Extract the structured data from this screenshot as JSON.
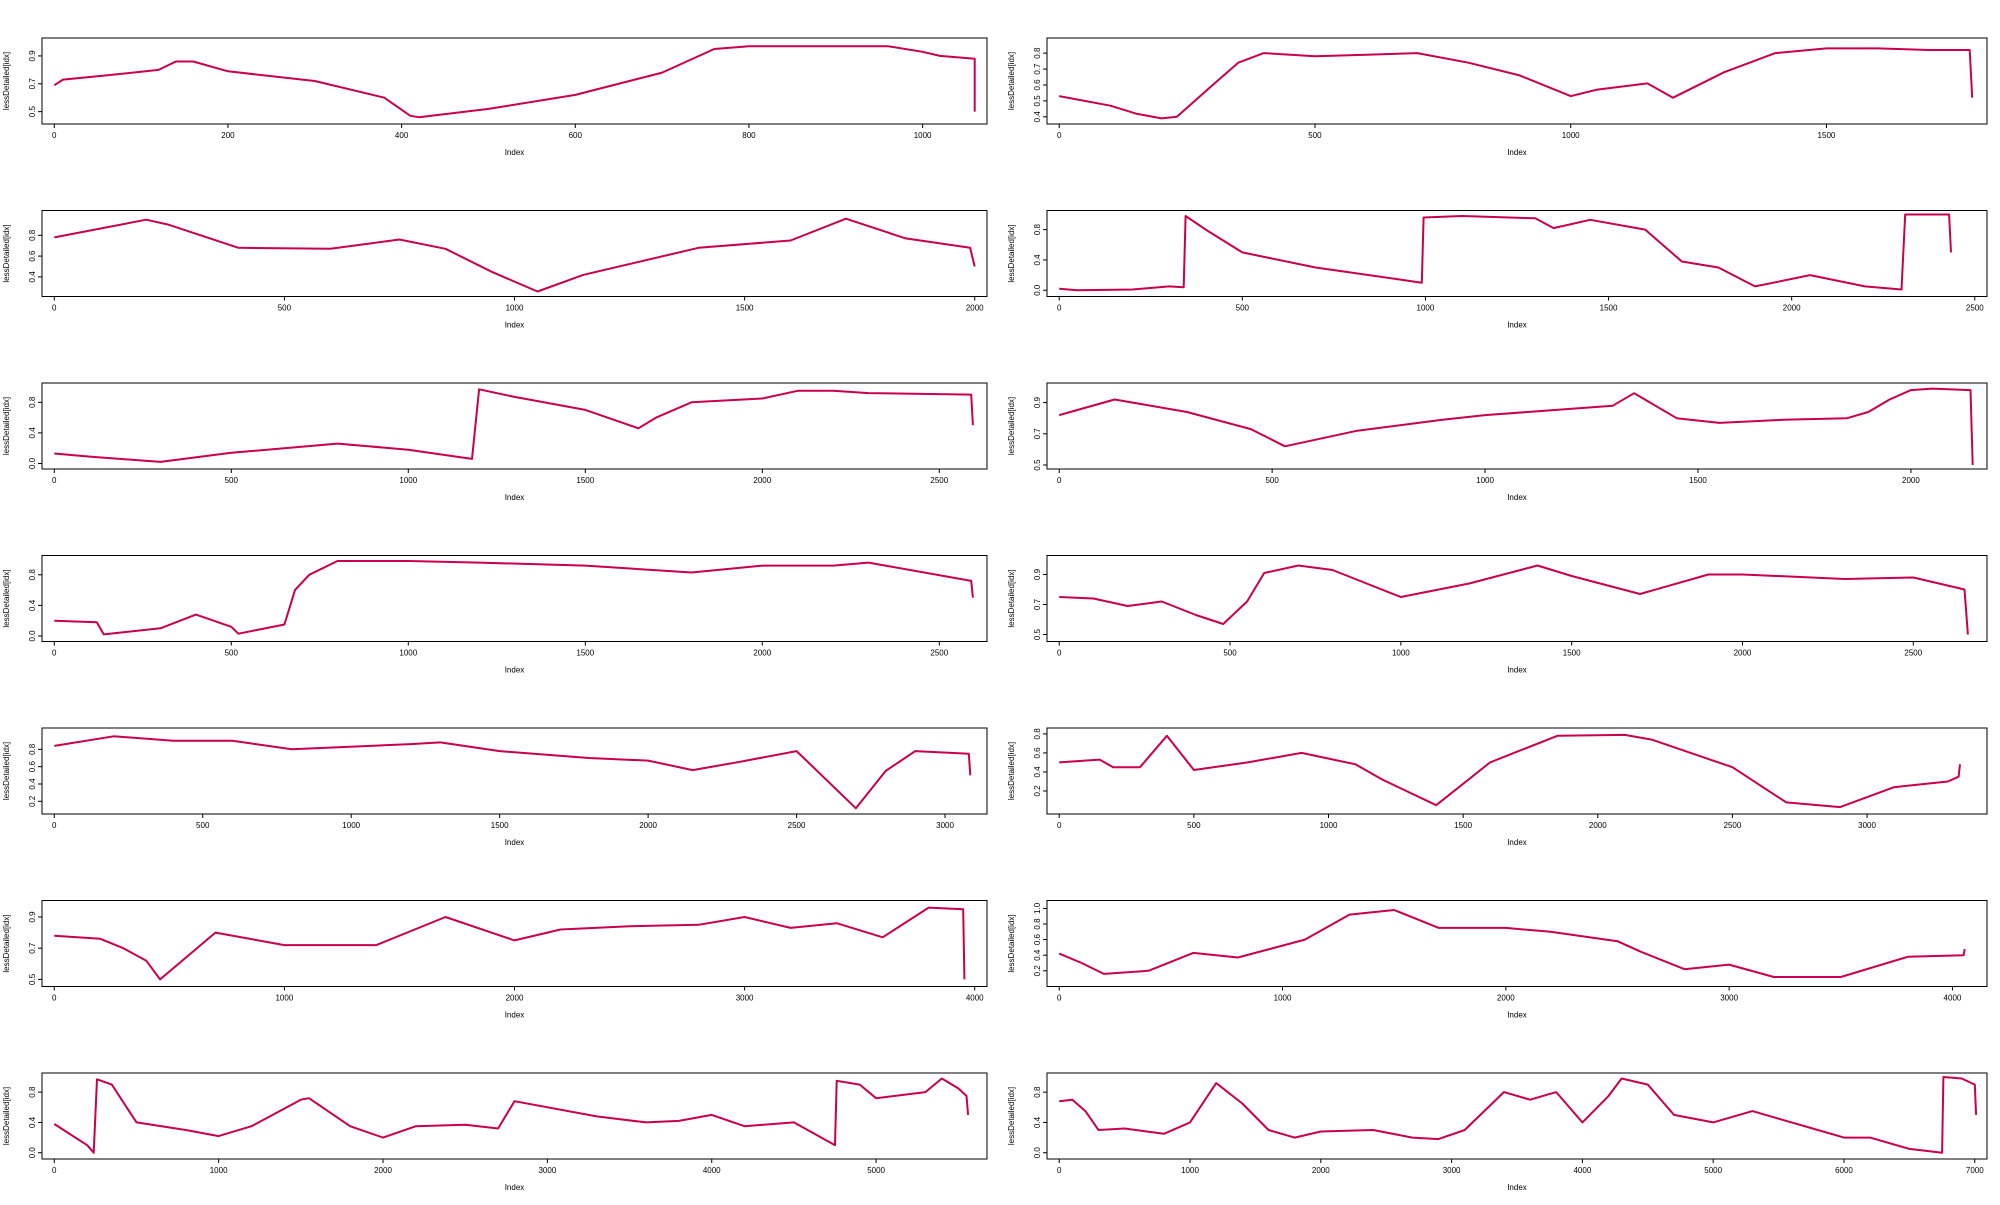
{
  "chart_data": [
    {
      "type": "line",
      "xlabel": "Index",
      "ylabel": "lessDetailed[idx]",
      "xlim": [
        0,
        1060
      ],
      "ylim": [
        0.44,
        1.0
      ],
      "xticks": [
        0,
        200,
        400,
        600,
        800,
        1000
      ],
      "yticks": [
        0.5,
        0.7,
        0.9
      ],
      "series": [
        {
          "x": [
            0,
            10,
            60,
            120,
            140,
            160,
            200,
            300,
            380,
            410,
            420,
            500,
            600,
            700,
            760,
            800,
            900,
            960,
            1000,
            1020,
            1060,
            1060
          ],
          "y": [
            0.69,
            0.73,
            0.76,
            0.8,
            0.86,
            0.86,
            0.79,
            0.72,
            0.6,
            0.47,
            0.46,
            0.52,
            0.62,
            0.78,
            0.95,
            0.97,
            0.97,
            0.97,
            0.93,
            0.9,
            0.88,
            0.5
          ]
        }
      ]
    },
    {
      "type": "line",
      "xlabel": "Index",
      "ylabel": "lessDetailed[idx]",
      "xlim": [
        0,
        1790
      ],
      "ylim": [
        0.38,
        0.87
      ],
      "xticks": [
        0,
        500,
        1000,
        1500
      ],
      "yticks": [
        0.4,
        0.5,
        0.6,
        0.7,
        0.8
      ],
      "series": [
        {
          "x": [
            0,
            100,
            150,
            200,
            230,
            300,
            350,
            400,
            500,
            600,
            700,
            800,
            900,
            1000,
            1050,
            1150,
            1200,
            1300,
            1400,
            1500,
            1600,
            1700,
            1780,
            1785
          ],
          "y": [
            0.53,
            0.47,
            0.42,
            0.39,
            0.4,
            0.6,
            0.74,
            0.8,
            0.78,
            0.79,
            0.8,
            0.74,
            0.66,
            0.53,
            0.57,
            0.61,
            0.52,
            0.68,
            0.8,
            0.83,
            0.83,
            0.82,
            0.82,
            0.52
          ]
        }
      ]
    },
    {
      "type": "line",
      "xlabel": "Index",
      "ylabel": "lessDetailed[idx]",
      "xlim": [
        0,
        2000
      ],
      "ylim": [
        0.25,
        1.0
      ],
      "xticks": [
        0,
        500,
        1000,
        1500,
        2000
      ],
      "yticks": [
        0.4,
        0.6,
        0.8
      ],
      "series": [
        {
          "x": [
            0,
            200,
            250,
            400,
            600,
            750,
            850,
            950,
            1050,
            1150,
            1400,
            1600,
            1720,
            1850,
            1990,
            2000
          ],
          "y": [
            0.78,
            0.95,
            0.9,
            0.68,
            0.67,
            0.76,
            0.67,
            0.45,
            0.26,
            0.42,
            0.68,
            0.75,
            0.96,
            0.77,
            0.68,
            0.5
          ]
        }
      ]
    },
    {
      "type": "line",
      "xlabel": "Index",
      "ylabel": "lessDetailed[idx]",
      "xlim": [
        0,
        2500
      ],
      "ylim": [
        -0.03,
        1.0
      ],
      "xticks": [
        0,
        500,
        1000,
        1500,
        2000,
        2500
      ],
      "yticks": [
        0.0,
        0.4,
        0.8
      ],
      "series": [
        {
          "x": [
            0,
            50,
            200,
            300,
            340,
            345,
            400,
            500,
            700,
            990,
            995,
            1100,
            1300,
            1350,
            1450,
            1600,
            1700,
            1800,
            1900,
            1950,
            2050,
            2200,
            2300,
            2310,
            2430,
            2435
          ],
          "y": [
            0.02,
            0.0,
            0.01,
            0.05,
            0.04,
            0.98,
            0.8,
            0.5,
            0.3,
            0.1,
            0.96,
            0.98,
            0.95,
            0.82,
            0.93,
            0.8,
            0.38,
            0.3,
            0.05,
            0.1,
            0.2,
            0.05,
            0.01,
            1.0,
            1.0,
            0.5
          ]
        }
      ]
    },
    {
      "type": "line",
      "xlabel": "Index",
      "ylabel": "lessDetailed[idx]",
      "xlim": [
        0,
        2600
      ],
      "ylim": [
        -0.02,
        1.0
      ],
      "xticks": [
        0,
        500,
        1000,
        1500,
        2000,
        2500
      ],
      "yticks": [
        0.0,
        0.4,
        0.8
      ],
      "series": [
        {
          "x": [
            0,
            100,
            300,
            500,
            800,
            1000,
            1150,
            1180,
            1200,
            1300,
            1500,
            1650,
            1700,
            1800,
            2000,
            2100,
            2200,
            2300,
            2590,
            2595
          ],
          "y": [
            0.13,
            0.09,
            0.02,
            0.14,
            0.26,
            0.18,
            0.08,
            0.06,
            0.97,
            0.87,
            0.7,
            0.46,
            0.6,
            0.8,
            0.85,
            0.95,
            0.95,
            0.92,
            0.9,
            0.5
          ]
        }
      ]
    },
    {
      "type": "line",
      "xlabel": "Index",
      "ylabel": "lessDetailed[idx]",
      "xlim": [
        0,
        2150
      ],
      "ylim": [
        0.5,
        1.0
      ],
      "xticks": [
        0,
        500,
        1000,
        1500,
        2000
      ],
      "yticks": [
        0.5,
        0.7,
        0.9
      ],
      "series": [
        {
          "x": [
            0,
            130,
            300,
            450,
            530,
            700,
            900,
            1000,
            1100,
            1300,
            1350,
            1450,
            1550,
            1700,
            1850,
            1900,
            1950,
            2000,
            2050,
            2140,
            2145
          ],
          "y": [
            0.82,
            0.92,
            0.84,
            0.73,
            0.62,
            0.72,
            0.79,
            0.82,
            0.84,
            0.88,
            0.96,
            0.8,
            0.77,
            0.79,
            0.8,
            0.84,
            0.92,
            0.98,
            0.99,
            0.98,
            0.5
          ]
        }
      ]
    },
    {
      "type": "line",
      "xlabel": "Index",
      "ylabel": "lessDetailed[idx]",
      "xlim": [
        0,
        2600
      ],
      "ylim": [
        -0.02,
        1.0
      ],
      "xticks": [
        0,
        500,
        1000,
        1500,
        2000,
        2500
      ],
      "yticks": [
        0.0,
        0.4,
        0.8
      ],
      "series": [
        {
          "x": [
            0,
            120,
            140,
            300,
            400,
            500,
            520,
            650,
            680,
            720,
            800,
            1000,
            1200,
            1500,
            1800,
            2000,
            2200,
            2300,
            2590,
            2595
          ],
          "y": [
            0.2,
            0.18,
            0.02,
            0.1,
            0.28,
            0.12,
            0.03,
            0.15,
            0.6,
            0.8,
            0.98,
            0.98,
            0.96,
            0.92,
            0.83,
            0.92,
            0.92,
            0.96,
            0.72,
            0.5
          ]
        }
      ]
    },
    {
      "type": "line",
      "xlabel": "Index",
      "ylabel": "lessDetailed[idx]",
      "xlim": [
        0,
        2680
      ],
      "ylim": [
        0.48,
        1.0
      ],
      "xticks": [
        0,
        500,
        1000,
        1500,
        2000,
        2500
      ],
      "yticks": [
        0.5,
        0.7,
        0.9
      ],
      "series": [
        {
          "x": [
            0,
            100,
            200,
            300,
            400,
            480,
            550,
            600,
            700,
            800,
            1000,
            1200,
            1400,
            1500,
            1700,
            1900,
            2000,
            2300,
            2500,
            2650,
            2660
          ],
          "y": [
            0.75,
            0.74,
            0.69,
            0.72,
            0.63,
            0.57,
            0.72,
            0.91,
            0.96,
            0.93,
            0.75,
            0.84,
            0.96,
            0.89,
            0.77,
            0.9,
            0.9,
            0.87,
            0.88,
            0.8,
            0.5
          ]
        }
      ]
    },
    {
      "type": "line",
      "xlabel": "Index",
      "ylabel": "lessDetailed[idx]",
      "xlim": [
        0,
        3100
      ],
      "ylim": [
        0.1,
        1.0
      ],
      "xticks": [
        0,
        500,
        1000,
        1500,
        2000,
        2500,
        3000
      ],
      "yticks": [
        0.2,
        0.4,
        0.6,
        0.8
      ],
      "series": [
        {
          "x": [
            0,
            200,
            400,
            600,
            800,
            1200,
            1300,
            1500,
            1800,
            2000,
            2150,
            2300,
            2500,
            2700,
            2800,
            2900,
            3080,
            3085
          ],
          "y": [
            0.84,
            0.95,
            0.9,
            0.9,
            0.8,
            0.86,
            0.88,
            0.78,
            0.7,
            0.67,
            0.56,
            0.65,
            0.78,
            0.12,
            0.55,
            0.78,
            0.75,
            0.5
          ]
        }
      ]
    },
    {
      "type": "line",
      "xlabel": "Index",
      "ylabel": "lessDetailed[idx]",
      "xlim": [
        0,
        3400
      ],
      "ylim": [
        0.0,
        0.82
      ],
      "xticks": [
        0,
        500,
        1000,
        1500,
        2000,
        2500,
        3000
      ],
      "yticks": [
        0.2,
        0.4,
        0.6,
        0.8
      ],
      "series": [
        {
          "x": [
            0,
            150,
            200,
            300,
            400,
            500,
            700,
            900,
            1100,
            1200,
            1400,
            1600,
            1850,
            2100,
            2200,
            2500,
            2700,
            2900,
            3100,
            3300,
            3340,
            3345
          ],
          "y": [
            0.5,
            0.53,
            0.45,
            0.45,
            0.78,
            0.42,
            0.5,
            0.6,
            0.48,
            0.32,
            0.05,
            0.5,
            0.78,
            0.79,
            0.74,
            0.45,
            0.08,
            0.03,
            0.24,
            0.3,
            0.35,
            0.48
          ]
        }
      ]
    },
    {
      "type": "line",
      "xlabel": "Index",
      "ylabel": "lessDetailed[idx]",
      "xlim": [
        0,
        4000
      ],
      "ylim": [
        0.48,
        0.98
      ],
      "xticks": [
        0,
        1000,
        2000,
        3000,
        4000
      ],
      "yticks": [
        0.5,
        0.7,
        0.9
      ],
      "series": [
        {
          "x": [
            0,
            200,
            300,
            400,
            460,
            700,
            1000,
            1200,
            1400,
            1700,
            2000,
            2200,
            2500,
            2800,
            3000,
            3200,
            3400,
            3600,
            3800,
            3950,
            3955
          ],
          "y": [
            0.78,
            0.76,
            0.7,
            0.62,
            0.5,
            0.8,
            0.72,
            0.72,
            0.72,
            0.9,
            0.75,
            0.82,
            0.84,
            0.85,
            0.9,
            0.83,
            0.86,
            0.77,
            0.96,
            0.95,
            0.5
          ]
        }
      ]
    },
    {
      "type": "line",
      "xlabel": "Index",
      "ylabel": "lessDetailed[idx]",
      "xlim": [
        0,
        4100
      ],
      "ylim": [
        0.05,
        1.05
      ],
      "xticks": [
        0,
        1000,
        2000,
        3000,
        4000
      ],
      "yticks": [
        0.2,
        0.4,
        0.6,
        0.8,
        1.0
      ],
      "series": [
        {
          "x": [
            0,
            100,
            200,
            400,
            600,
            800,
            1100,
            1300,
            1500,
            1700,
            2000,
            2200,
            2500,
            2600,
            2800,
            3000,
            3200,
            3500,
            3800,
            4050,
            4055
          ],
          "y": [
            0.42,
            0.3,
            0.16,
            0.2,
            0.43,
            0.37,
            0.6,
            0.92,
            0.98,
            0.75,
            0.75,
            0.7,
            0.58,
            0.45,
            0.22,
            0.28,
            0.12,
            0.12,
            0.38,
            0.4,
            0.48
          ]
        }
      ]
    },
    {
      "type": "line",
      "xlabel": "Index",
      "ylabel": "lessDetailed[idx]",
      "xlim": [
        0,
        5600
      ],
      "ylim": [
        -0.03,
        1.0
      ],
      "xticks": [
        0,
        1000,
        2000,
        3000,
        4000,
        5000
      ],
      "yticks": [
        0.0,
        0.4,
        0.8
      ],
      "series": [
        {
          "x": [
            0,
            200,
            240,
            260,
            350,
            500,
            800,
            1000,
            1200,
            1500,
            1550,
            1800,
            2000,
            2200,
            2500,
            2700,
            2800,
            3300,
            3600,
            3800,
            4000,
            4200,
            4500,
            4750,
            4760,
            4900,
            5000,
            5300,
            5400,
            5500,
            5550,
            5560
          ],
          "y": [
            0.38,
            0.1,
            0.0,
            0.97,
            0.9,
            0.4,
            0.3,
            0.22,
            0.35,
            0.7,
            0.72,
            0.35,
            0.2,
            0.35,
            0.37,
            0.32,
            0.68,
            0.48,
            0.4,
            0.42,
            0.5,
            0.35,
            0.4,
            0.1,
            0.95,
            0.9,
            0.72,
            0.8,
            0.98,
            0.85,
            0.75,
            0.5
          ]
        }
      ]
    },
    {
      "type": "line",
      "xlabel": "Index",
      "ylabel": "lessDetailed[idx]",
      "xlim": [
        0,
        7000
      ],
      "ylim": [
        -0.03,
        1.0
      ],
      "xticks": [
        0,
        1000,
        2000,
        3000,
        4000,
        5000,
        6000,
        7000
      ],
      "yticks": [
        0.0,
        0.4,
        0.8
      ],
      "series": [
        {
          "x": [
            0,
            100,
            200,
            300,
            500,
            800,
            1000,
            1200,
            1400,
            1600,
            1800,
            2000,
            2400,
            2700,
            2900,
            3100,
            3400,
            3600,
            3800,
            4000,
            4200,
            4300,
            4500,
            4700,
            5000,
            5300,
            5500,
            5800,
            6000,
            6200,
            6500,
            6750,
            6760,
            6900,
            7000,
            7010
          ],
          "y": [
            0.68,
            0.7,
            0.55,
            0.3,
            0.32,
            0.25,
            0.4,
            0.92,
            0.65,
            0.3,
            0.2,
            0.28,
            0.3,
            0.2,
            0.18,
            0.3,
            0.8,
            0.7,
            0.8,
            0.4,
            0.75,
            0.98,
            0.9,
            0.5,
            0.4,
            0.55,
            0.45,
            0.3,
            0.2,
            0.2,
            0.05,
            0.0,
            1.0,
            0.98,
            0.9,
            0.5
          ]
        }
      ]
    }
  ],
  "colors": {
    "line": "#c8004d",
    "axis": "#000000",
    "background": "#ffffff"
  }
}
